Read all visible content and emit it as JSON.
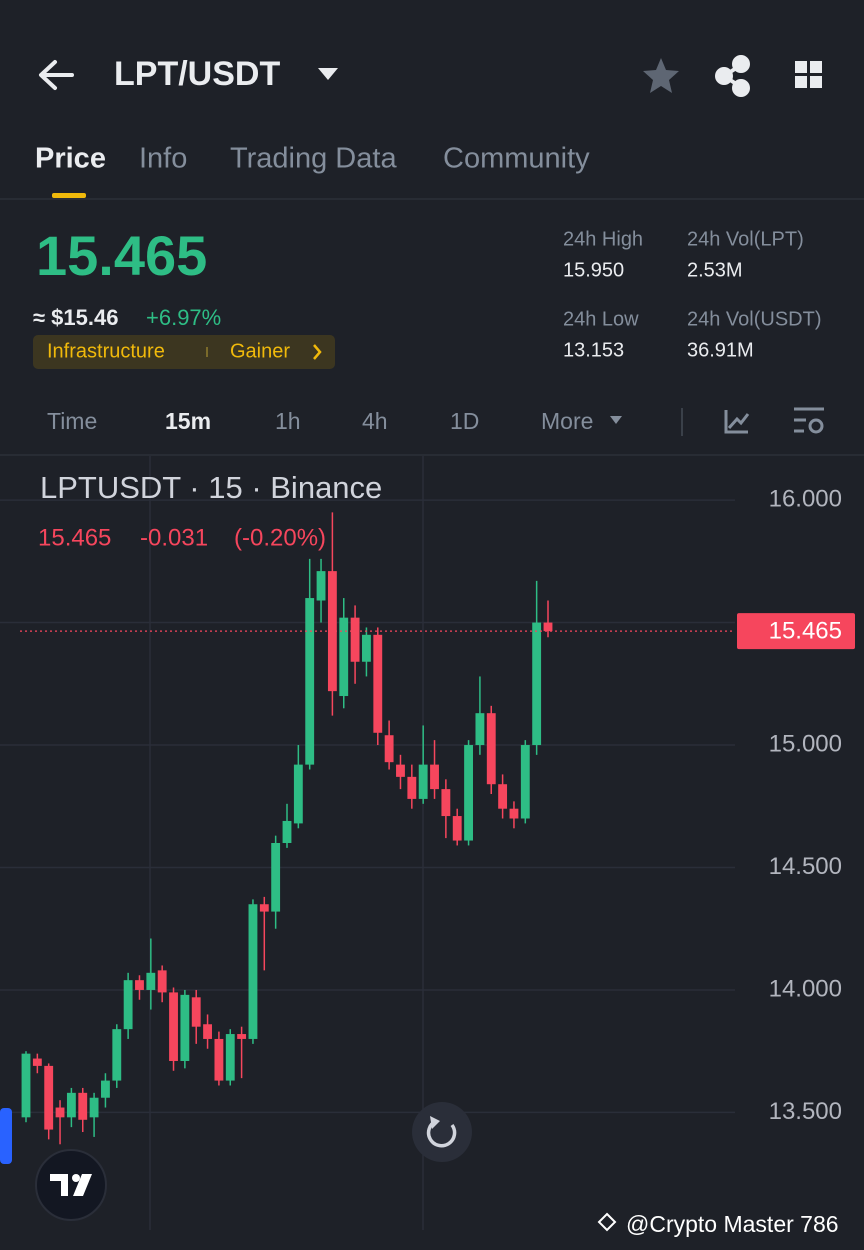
{
  "header": {
    "pair": "LPT/USDT"
  },
  "tabs": [
    "Price",
    "Info",
    "Trading Data",
    "Community"
  ],
  "price": {
    "last": "15.465",
    "usd": "≈ $15.46",
    "change": "+6.97%"
  },
  "tags": [
    "Infrastructure",
    "Gainer"
  ],
  "stats": [
    {
      "label": "24h High",
      "value": "15.950"
    },
    {
      "label": "24h Vol(LPT)",
      "value": "2.53M"
    },
    {
      "label": "24h Low",
      "value": "13.153"
    },
    {
      "label": "24h Vol(USDT)",
      "value": "36.91M"
    }
  ],
  "intervals": [
    "Time",
    "15m",
    "1h",
    "4h",
    "1D",
    "More"
  ],
  "legend": {
    "title": "LPTUSDT · 15 · Binance",
    "close": "15.465",
    "change": "-0.031",
    "change_pct": "(-0.20%)"
  },
  "watermark": "@Crypto Master 786",
  "chart_data": {
    "type": "candlestick",
    "up_color": "#2ebd85",
    "down_color": "#f6465d",
    "ylim": [
      13.02,
      16.18
    ],
    "yticks": [
      {
        "value": 13.5,
        "label": "13.500"
      },
      {
        "value": 14,
        "label": "14.000"
      },
      {
        "value": 14.5,
        "label": "14.500"
      },
      {
        "value": 15,
        "label": "15.000"
      },
      {
        "value": 15.5,
        "label": "15.500"
      },
      {
        "value": 16,
        "label": "16.000"
      }
    ],
    "hidden_tick_labels": [
      4
    ],
    "last_price": {
      "value": 15.465,
      "label": "15.465"
    },
    "grid": true,
    "candles": [
      [
        13.48,
        13.75,
        13.46,
        13.74
      ],
      [
        13.72,
        13.74,
        13.66,
        13.69
      ],
      [
        13.69,
        13.7,
        13.39,
        13.43
      ],
      [
        13.52,
        13.55,
        13.37,
        13.48
      ],
      [
        13.48,
        13.6,
        13.44,
        13.58
      ],
      [
        13.58,
        13.6,
        13.42,
        13.47
      ],
      [
        13.48,
        13.58,
        13.4,
        13.56
      ],
      [
        13.56,
        13.66,
        13.52,
        13.63
      ],
      [
        13.63,
        13.86,
        13.6,
        13.84
      ],
      [
        13.84,
        14.07,
        13.8,
        14.04
      ],
      [
        14.04,
        14.06,
        13.96,
        14.0
      ],
      [
        14.0,
        14.21,
        13.92,
        14.07
      ],
      [
        14.08,
        14.1,
        13.95,
        13.99
      ],
      [
        13.99,
        14.01,
        13.67,
        13.71
      ],
      [
        13.71,
        14.0,
        13.68,
        13.98
      ],
      [
        13.97,
        14.0,
        13.78,
        13.85
      ],
      [
        13.86,
        13.9,
        13.76,
        13.8
      ],
      [
        13.8,
        13.83,
        13.61,
        13.63
      ],
      [
        13.63,
        13.84,
        13.61,
        13.82
      ],
      [
        13.82,
        13.85,
        13.64,
        13.8
      ],
      [
        13.8,
        14.37,
        13.78,
        14.35
      ],
      [
        14.35,
        14.38,
        14.08,
        14.32
      ],
      [
        14.32,
        14.63,
        14.25,
        14.6
      ],
      [
        14.6,
        14.76,
        14.58,
        14.69
      ],
      [
        14.68,
        15.0,
        14.66,
        14.92
      ],
      [
        14.92,
        15.76,
        14.9,
        15.6
      ],
      [
        15.59,
        15.76,
        15.5,
        15.71
      ],
      [
        15.71,
        15.95,
        15.12,
        15.22
      ],
      [
        15.2,
        15.6,
        15.15,
        15.52
      ],
      [
        15.52,
        15.57,
        15.25,
        15.34
      ],
      [
        15.34,
        15.48,
        15.28,
        15.45
      ],
      [
        15.45,
        15.48,
        15.0,
        15.05
      ],
      [
        15.04,
        15.1,
        14.9,
        14.93
      ],
      [
        14.92,
        14.96,
        14.82,
        14.87
      ],
      [
        14.87,
        14.92,
        14.74,
        14.78
      ],
      [
        14.78,
        15.08,
        14.76,
        14.92
      ],
      [
        14.92,
        15.02,
        14.78,
        14.82
      ],
      [
        14.82,
        14.86,
        14.62,
        14.71
      ],
      [
        14.71,
        14.74,
        14.59,
        14.61
      ],
      [
        14.61,
        15.02,
        14.59,
        15.0
      ],
      [
        15.0,
        15.28,
        14.96,
        15.13
      ],
      [
        15.13,
        15.16,
        14.8,
        14.84
      ],
      [
        14.84,
        14.88,
        14.7,
        14.74
      ],
      [
        14.74,
        14.77,
        14.66,
        14.7
      ],
      [
        14.7,
        15.02,
        14.68,
        15.0
      ],
      [
        15.0,
        15.67,
        14.96,
        15.5
      ],
      [
        15.5,
        15.59,
        15.44,
        15.465
      ]
    ]
  }
}
